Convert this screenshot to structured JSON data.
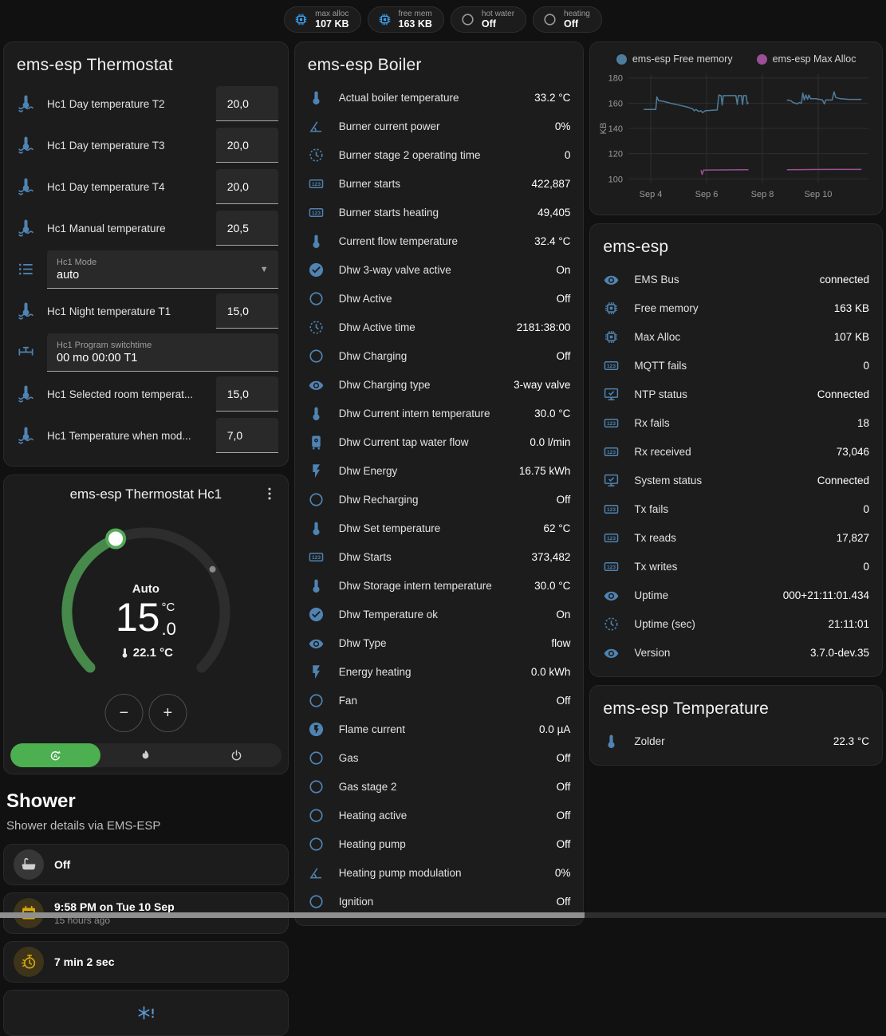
{
  "colors": {
    "accent_green": "#4caf50",
    "arc_green": "#46894b",
    "icon_blue": "#4f83b2",
    "chip_blue": "#38a1f0",
    "amber": "#d8a80e",
    "snowflake_blue": "#5a9bd5"
  },
  "chips": [
    {
      "label": "max alloc",
      "value": "107 KB",
      "icon": "chip",
      "color": "#38a1f0"
    },
    {
      "label": "free mem",
      "value": "163 KB",
      "icon": "chip",
      "color": "#38a1f0"
    },
    {
      "label": "hot water",
      "value": "Off",
      "icon": "ring",
      "color": "#9b9b9b"
    },
    {
      "label": "heating",
      "value": "Off",
      "icon": "ring",
      "color": "#9b9b9b"
    }
  ],
  "thermostat_card": {
    "title": "ems-esp Thermostat",
    "rows": [
      {
        "kind": "number",
        "icon": "thermometer-water",
        "label": "Hc1 Day temperature T2",
        "value": "20,0"
      },
      {
        "kind": "number",
        "icon": "thermometer-water",
        "label": "Hc1 Day temperature T3",
        "value": "20,0"
      },
      {
        "kind": "number",
        "icon": "thermometer-water",
        "label": "Hc1 Day temperature T4",
        "value": "20,0"
      },
      {
        "kind": "number",
        "icon": "thermometer-water",
        "label": "Hc1 Manual temperature",
        "value": "20,5"
      },
      {
        "kind": "select",
        "icon": "list",
        "label": "Hc1 Mode",
        "value": "auto"
      },
      {
        "kind": "number",
        "icon": "thermometer-water",
        "label": "Hc1 Night temperature T1",
        "value": "15,0"
      },
      {
        "kind": "text",
        "icon": "valve",
        "label": "Hc1 Program switchtime",
        "value": "00 mo 00:00 T1"
      },
      {
        "kind": "number",
        "icon": "thermometer-water",
        "label": "Hc1 Selected room temperat...",
        "value": "15,0"
      },
      {
        "kind": "number",
        "icon": "thermometer-water",
        "label": "Hc1 Temperature when mod...",
        "value": "7,0"
      }
    ]
  },
  "dial_card": {
    "title": "ems-esp Thermostat Hc1",
    "mode": "Auto",
    "target_int": "15",
    "target_frac": ".0",
    "target_unit": "°C",
    "current": "22.1 °C",
    "modes": [
      {
        "name": "auto",
        "icon": "auto",
        "active": true
      },
      {
        "name": "heat",
        "icon": "flame",
        "active": false
      },
      {
        "name": "off",
        "icon": "power",
        "active": false
      }
    ]
  },
  "shower": {
    "heading": "Shower",
    "subheading": "Shower details via EMS-ESP",
    "tiles": [
      {
        "icon": "bathtub",
        "icon_color": "#cfcfcf",
        "icon_bg": "rgba(255,255,255,0.12)",
        "primary": "Off"
      },
      {
        "icon": "calendar",
        "icon_color": "#d8a80e",
        "icon_bg": "rgba(216,168,14,0.18)",
        "primary": "9:58 PM on Tue 10 Sep",
        "secondary": "15 hours ago"
      },
      {
        "icon": "timer",
        "icon_color": "#d8a80e",
        "icon_bg": "rgba(216,168,14,0.18)",
        "primary": "7 min 2 sec"
      },
      {
        "icon": "snowflake-alert",
        "icon_color": "#5a9bd5",
        "centered": true
      }
    ]
  },
  "boiler_card": {
    "title": "ems-esp Boiler",
    "rows": [
      {
        "icon": "thermometer",
        "label": "Actual boiler temperature",
        "value": "33.2 °C"
      },
      {
        "icon": "angle",
        "label": "Burner current power",
        "value": "0%"
      },
      {
        "icon": "clock",
        "label": "Burner stage 2 operating time",
        "value": "0"
      },
      {
        "icon": "counter",
        "label": "Burner starts",
        "value": "422,887"
      },
      {
        "icon": "counter",
        "label": "Burner starts heating",
        "value": "49,405"
      },
      {
        "icon": "thermometer",
        "label": "Current flow temperature",
        "value": "32.4 °C"
      },
      {
        "icon": "check-circle",
        "label": "Dhw 3-way valve active",
        "value": "On"
      },
      {
        "icon": "circle",
        "label": "Dhw Active",
        "value": "Off"
      },
      {
        "icon": "clock",
        "label": "Dhw Active time",
        "value": "2181:38:00"
      },
      {
        "icon": "circle",
        "label": "Dhw Charging",
        "value": "Off"
      },
      {
        "icon": "eye",
        "label": "Dhw Charging type",
        "value": "3-way valve"
      },
      {
        "icon": "thermometer",
        "label": "Dhw Current intern temperature",
        "value": "30.0 °C"
      },
      {
        "icon": "boiler",
        "label": "Dhw Current tap water flow",
        "value": "0.0 l/min"
      },
      {
        "icon": "flash",
        "label": "Dhw Energy",
        "value": "16.75 kWh"
      },
      {
        "icon": "circle",
        "label": "Dhw Recharging",
        "value": "Off"
      },
      {
        "icon": "thermometer",
        "label": "Dhw Set temperature",
        "value": "62 °C"
      },
      {
        "icon": "counter",
        "label": "Dhw Starts",
        "value": "373,482"
      },
      {
        "icon": "thermometer",
        "label": "Dhw Storage intern temperature",
        "value": "30.0 °C"
      },
      {
        "icon": "check-circle",
        "label": "Dhw Temperature ok",
        "value": "On"
      },
      {
        "icon": "eye",
        "label": "Dhw Type",
        "value": "flow"
      },
      {
        "icon": "flash",
        "label": "Energy heating",
        "value": "0.0 kWh"
      },
      {
        "icon": "circle",
        "label": "Fan",
        "value": "Off"
      },
      {
        "icon": "flash-circle",
        "label": "Flame current",
        "value": "0.0 µA"
      },
      {
        "icon": "circle",
        "label": "Gas",
        "value": "Off"
      },
      {
        "icon": "circle",
        "label": "Gas stage 2",
        "value": "Off"
      },
      {
        "icon": "circle",
        "label": "Heating active",
        "value": "Off"
      },
      {
        "icon": "circle",
        "label": "Heating pump",
        "value": "Off"
      },
      {
        "icon": "angle",
        "label": "Heating pump modulation",
        "value": "0%"
      },
      {
        "icon": "circle",
        "label": "Ignition",
        "value": "Off"
      }
    ]
  },
  "chart_data": {
    "type": "line",
    "title": "",
    "xlabel": "",
    "ylabel": "KB",
    "ylim": [
      97,
      183
    ],
    "yticks": [
      100,
      120,
      140,
      160,
      180
    ],
    "xlim": [
      3.2,
      11.8
    ],
    "xticks": [
      {
        "x": 4,
        "label": "Sep 4"
      },
      {
        "x": 6,
        "label": "Sep 6"
      },
      {
        "x": 8,
        "label": "Sep 8"
      },
      {
        "x": 10,
        "label": "Sep 10"
      }
    ],
    "grid": true,
    "legend_position": "top",
    "series": [
      {
        "name": "ems-esp Free memory",
        "color": "#4e7d9c",
        "unit": "KB",
        "segments": [
          [
            [
              3.75,
              155
            ],
            [
              4.18,
              155
            ],
            [
              4.22,
              165
            ],
            [
              4.28,
              162
            ],
            [
              4.45,
              161.5
            ],
            [
              4.7,
              160
            ],
            [
              5.0,
              158.5
            ],
            [
              5.3,
              157
            ],
            [
              5.5,
              155.5
            ],
            [
              5.56,
              154
            ],
            [
              5.62,
              155
            ],
            [
              5.72,
              153.5
            ],
            [
              5.8,
              154
            ],
            [
              5.86,
              152.5
            ],
            [
              5.95,
              154
            ],
            [
              6.15,
              154.3
            ],
            [
              6.38,
              154.6
            ],
            [
              6.44,
              166.5
            ],
            [
              6.52,
              166
            ],
            [
              6.56,
              158.5
            ],
            [
              6.6,
              166
            ],
            [
              7.05,
              166
            ],
            [
              7.1,
              159
            ],
            [
              7.14,
              166
            ],
            [
              7.25,
              166
            ],
            [
              7.29,
              159
            ],
            [
              7.33,
              166
            ],
            [
              7.42,
              166
            ],
            [
              7.46,
              159.5
            ],
            [
              7.5,
              160.5
            ]
          ],
          [
            [
              8.88,
              162.5
            ],
            [
              9.02,
              162
            ],
            [
              9.1,
              160.5
            ],
            [
              9.18,
              160
            ],
            [
              9.24,
              159.5
            ],
            [
              9.32,
              160.5
            ],
            [
              9.4,
              160
            ],
            [
              9.45,
              168
            ],
            [
              9.5,
              162.5
            ],
            [
              9.56,
              166.5
            ],
            [
              9.62,
              163
            ],
            [
              9.67,
              166.5
            ],
            [
              9.73,
              163.5
            ],
            [
              9.9,
              163.5
            ],
            [
              10.05,
              163
            ],
            [
              10.15,
              162.5
            ],
            [
              10.22,
              159.5
            ],
            [
              10.27,
              162.5
            ],
            [
              10.5,
              162.5
            ],
            [
              10.57,
              169
            ],
            [
              10.63,
              164.5
            ],
            [
              10.8,
              163.5
            ],
            [
              11.1,
              163
            ],
            [
              11.55,
              163
            ]
          ]
        ]
      },
      {
        "name": "ems-esp Max Alloc",
        "color": "#9c4f96",
        "unit": "KB",
        "segments": [
          [
            [
              5.8,
              107
            ],
            [
              5.84,
              103.5
            ],
            [
              5.9,
              107
            ],
            [
              7.5,
              107.3
            ]
          ],
          [
            [
              8.88,
              107.3
            ],
            [
              9.5,
              107.4
            ],
            [
              10.5,
              107.5
            ],
            [
              11.55,
              107.5
            ]
          ]
        ]
      }
    ]
  },
  "esp_card": {
    "title": "ems-esp",
    "rows": [
      {
        "icon": "eye",
        "label": "EMS Bus",
        "value": "connected"
      },
      {
        "icon": "memory",
        "label": "Free memory",
        "value": "163 KB"
      },
      {
        "icon": "memory",
        "label": "Max Alloc",
        "value": "107 KB"
      },
      {
        "icon": "counter",
        "label": "MQTT fails",
        "value": "0"
      },
      {
        "icon": "monitor-check",
        "label": "NTP status",
        "value": "Connected"
      },
      {
        "icon": "counter",
        "label": "Rx fails",
        "value": "18"
      },
      {
        "icon": "counter",
        "label": "Rx received",
        "value": "73,046"
      },
      {
        "icon": "monitor-check",
        "label": "System status",
        "value": "Connected"
      },
      {
        "icon": "counter",
        "label": "Tx fails",
        "value": "0"
      },
      {
        "icon": "counter",
        "label": "Tx reads",
        "value": "17,827"
      },
      {
        "icon": "counter",
        "label": "Tx writes",
        "value": "0"
      },
      {
        "icon": "eye",
        "label": "Uptime",
        "value": "000+21:11:01.434"
      },
      {
        "icon": "clock",
        "label": "Uptime (sec)",
        "value": "21:11:01"
      },
      {
        "icon": "eye",
        "label": "Version",
        "value": "3.7.0-dev.35"
      }
    ]
  },
  "temp_card": {
    "title": "ems-esp Temperature",
    "rows": [
      {
        "icon": "thermometer",
        "label": "Zolder",
        "value": "22.3 °C"
      }
    ]
  }
}
